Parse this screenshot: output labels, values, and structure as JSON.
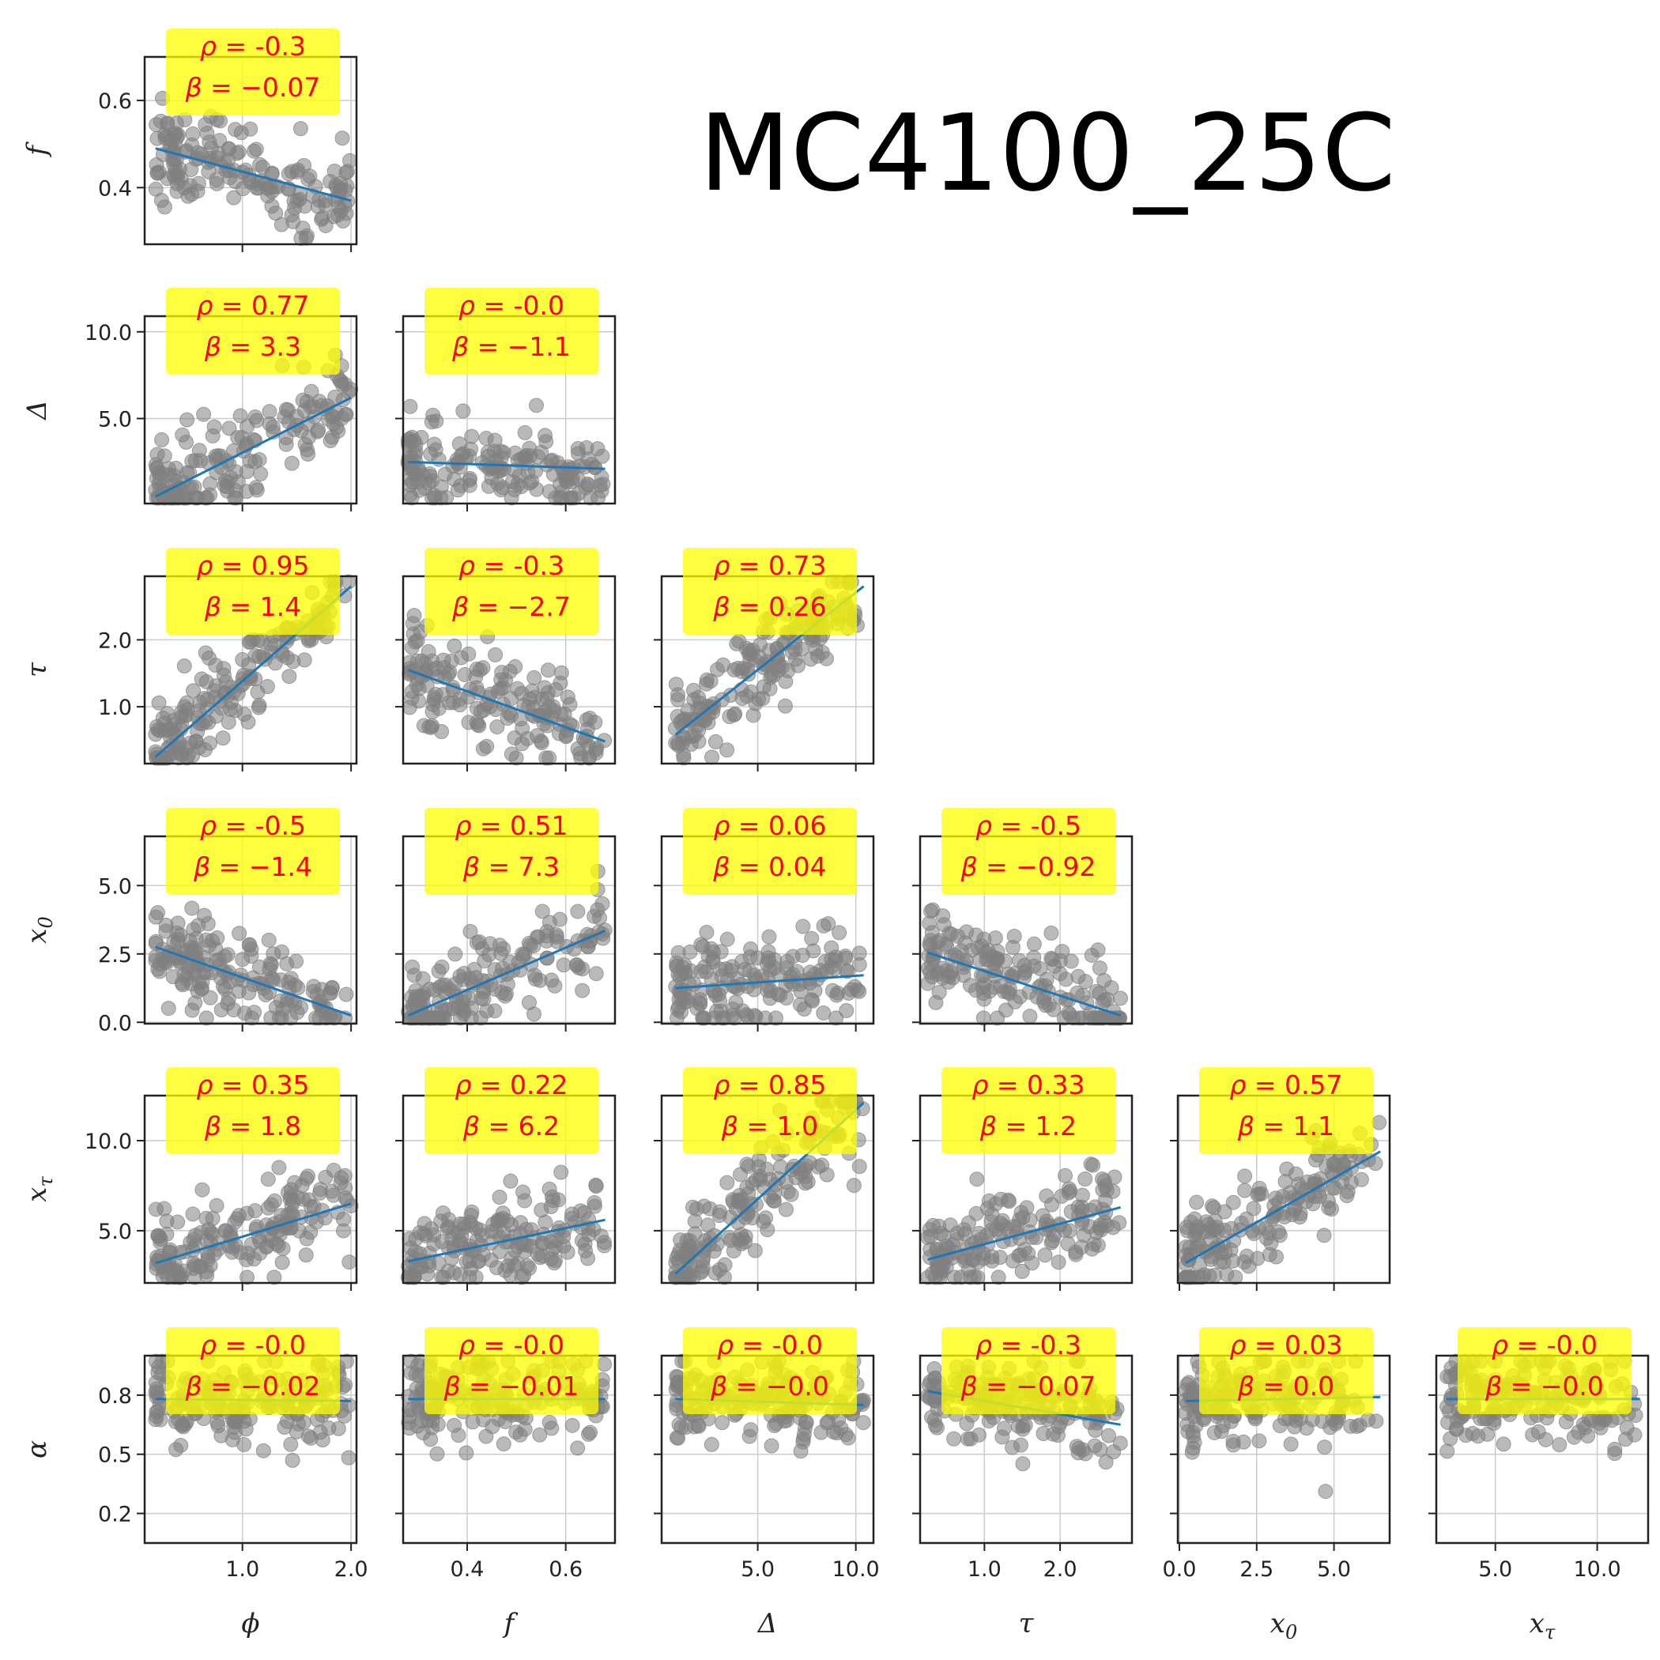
{
  "title": "MC4100_25C",
  "variables": [
    {
      "name": "ϕ",
      "sub": ""
    },
    {
      "name": "f",
      "sub": ""
    },
    {
      "name": "Δ",
      "sub": ""
    },
    {
      "name": "τ",
      "sub": ""
    },
    {
      "name": "x",
      "sub": "0"
    },
    {
      "name": "x",
      "sub": "τ"
    },
    {
      "name": "α",
      "sub": ""
    }
  ],
  "colors": {
    "points": "#808080",
    "fit_line": "#1f77b4",
    "annotation_text": "#ff0000",
    "annotation_box": "#ffff00",
    "grid": "#cccccc"
  },
  "chart_data": {
    "type": "scatter",
    "layout": "lower-triangular pairplot",
    "axes": [
      {
        "var": "ϕ",
        "range": [
          0.1,
          2.05
        ],
        "ticks": [
          1.0,
          2.0
        ],
        "tick_labels": [
          "1.0",
          "2.0"
        ]
      },
      {
        "var": "f",
        "range": [
          0.27,
          0.7
        ],
        "ticks": [
          0.4,
          0.6
        ],
        "tick_labels": [
          "0.4",
          "0.6"
        ]
      },
      {
        "var": "Δ",
        "range": [
          0.1,
          10.9
        ],
        "ticks": [
          5.0,
          10.0
        ],
        "tick_labels": [
          "5.0",
          "10.0"
        ]
      },
      {
        "var": "τ",
        "range": [
          0.15,
          2.95
        ],
        "ticks": [
          1.0,
          2.0
        ],
        "tick_labels": [
          "1.0",
          "2.0"
        ]
      },
      {
        "var": "x_0",
        "range": [
          -0.05,
          6.8
        ],
        "ticks": [
          0.0,
          2.5,
          5.0
        ],
        "tick_labels": [
          "0.0",
          "2.5",
          "5.0"
        ]
      },
      {
        "var": "x_τ",
        "range": [
          2.1,
          12.5
        ],
        "ticks": [
          5.0,
          10.0
        ],
        "tick_labels": [
          "5.0",
          "10.0"
        ]
      },
      {
        "var": "α",
        "range": [
          0.05,
          1.0
        ],
        "ticks": [
          0.2,
          0.5,
          0.8
        ],
        "tick_labels": [
          "0.2",
          "0.5",
          "0.8"
        ]
      }
    ],
    "panels": [
      {
        "x": "ϕ",
        "y": "f",
        "rho": "-0.3",
        "beta": "−0.07",
        "line": [
          [
            0.2,
            0.49
          ],
          [
            2.0,
            0.37
          ]
        ]
      },
      {
        "x": "ϕ",
        "y": "Δ",
        "rho": "0.77",
        "beta": "3.3",
        "line": [
          [
            0.2,
            0.5
          ],
          [
            2.0,
            6.2
          ]
        ]
      },
      {
        "x": "f",
        "y": "Δ",
        "rho": "-0.0",
        "beta": "−1.1",
        "line": [
          [
            0.28,
            2.5
          ],
          [
            0.68,
            2.1
          ]
        ]
      },
      {
        "x": "ϕ",
        "y": "τ",
        "rho": "0.95",
        "beta": "1.4",
        "line": [
          [
            0.2,
            0.25
          ],
          [
            2.0,
            2.8
          ]
        ]
      },
      {
        "x": "f",
        "y": "τ",
        "rho": "-0.3",
        "beta": "−2.7",
        "line": [
          [
            0.28,
            1.55
          ],
          [
            0.68,
            0.48
          ]
        ]
      },
      {
        "x": "Δ",
        "y": "τ",
        "rho": "0.73",
        "beta": "0.26",
        "line": [
          [
            0.8,
            0.58
          ],
          [
            10.4,
            2.8
          ]
        ]
      },
      {
        "x": "ϕ",
        "y": "x_0",
        "rho": "-0.5",
        "beta": "−1.4",
        "line": [
          [
            0.2,
            2.75
          ],
          [
            2.0,
            0.25
          ]
        ]
      },
      {
        "x": "f",
        "y": "x_0",
        "rho": "0.51",
        "beta": "7.3",
        "line": [
          [
            0.28,
            0.25
          ],
          [
            0.68,
            3.35
          ]
        ]
      },
      {
        "x": "Δ",
        "y": "x_0",
        "rho": "0.06",
        "beta": "0.04",
        "line": [
          [
            0.8,
            1.25
          ],
          [
            10.4,
            1.72
          ]
        ]
      },
      {
        "x": "τ",
        "y": "x_0",
        "rho": "-0.5",
        "beta": "−0.92",
        "line": [
          [
            0.25,
            2.55
          ],
          [
            2.8,
            0.25
          ]
        ]
      },
      {
        "x": "ϕ",
        "y": "x_τ",
        "rho": "0.35",
        "beta": "1.8",
        "line": [
          [
            0.2,
            3.2
          ],
          [
            2.0,
            6.5
          ]
        ]
      },
      {
        "x": "f",
        "y": "x_τ",
        "rho": "0.22",
        "beta": "6.2",
        "line": [
          [
            0.28,
            3.3
          ],
          [
            0.68,
            5.6
          ]
        ]
      },
      {
        "x": "Δ",
        "y": "x_τ",
        "rho": "0.85",
        "beta": "1.0",
        "line": [
          [
            0.8,
            2.6
          ],
          [
            10.4,
            12.1
          ]
        ]
      },
      {
        "x": "τ",
        "y": "x_τ",
        "rho": "0.33",
        "beta": "1.2",
        "line": [
          [
            0.25,
            3.4
          ],
          [
            2.8,
            6.3
          ]
        ]
      },
      {
        "x": "x_0",
        "y": "x_τ",
        "rho": "0.57",
        "beta": "1.1",
        "line": [
          [
            0.2,
            3.2
          ],
          [
            6.5,
            9.4
          ]
        ]
      },
      {
        "x": "ϕ",
        "y": "α",
        "rho": "-0.0",
        "beta": "−0.02",
        "line": [
          [
            0.2,
            0.78
          ],
          [
            2.0,
            0.77
          ]
        ]
      },
      {
        "x": "f",
        "y": "α",
        "rho": "-0.0",
        "beta": "−0.01",
        "line": [
          [
            0.28,
            0.78
          ],
          [
            0.68,
            0.78
          ]
        ]
      },
      {
        "x": "Δ",
        "y": "α",
        "rho": "-0.0",
        "beta": "−0.0",
        "line": [
          [
            0.8,
            0.78
          ],
          [
            10.4,
            0.75
          ]
        ]
      },
      {
        "x": "τ",
        "y": "α",
        "rho": "-0.3",
        "beta": "−0.07",
        "line": [
          [
            0.25,
            0.82
          ],
          [
            2.8,
            0.65
          ]
        ]
      },
      {
        "x": "x_0",
        "y": "α",
        "rho": "0.03",
        "beta": "0.0",
        "line": [
          [
            0.2,
            0.77
          ],
          [
            6.5,
            0.79
          ]
        ]
      },
      {
        "x": "x_τ",
        "y": "α",
        "rho": "-0.0",
        "beta": "−0.0",
        "line": [
          [
            2.6,
            0.78
          ],
          [
            12.1,
            0.78
          ]
        ]
      }
    ]
  }
}
